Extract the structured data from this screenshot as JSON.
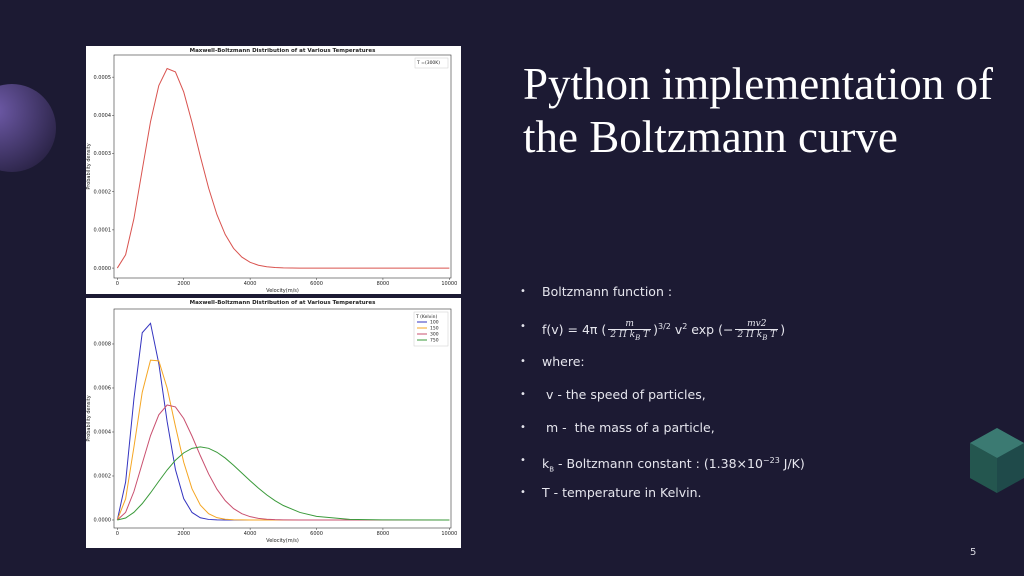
{
  "slide": {
    "title": "Python implementation of the Boltzmann curve",
    "bullet_mark": "•",
    "bullets": [
      "Boltzmann function :",
      "where:",
      " v - the speed of particles,",
      " m -  the mass of a particle,",
      "T - temperature in Kelvin."
    ],
    "formula": {
      "lead": "f(v) = 4π (",
      "num1": "m",
      "den": "2 Π k",
      "den_sub": "B",
      "den_tail": " T",
      "close": ")",
      "power": "3/2",
      "mid": "  v",
      "mid_sup": "2",
      "exp": " exp (−",
      "num2": "mv2",
      "end": ")"
    },
    "kb": {
      "k": "k",
      "sub": "B",
      "text": " - Boltzmann constant : (1.38×10",
      "sup": "−23",
      "tail": " J/K)"
    },
    "page_number": "5"
  },
  "chart_data": [
    {
      "type": "line",
      "title": "Maxwell-Boltzmann Distribution of  at Various Temperatures",
      "x_label": "Velocity(m/s)",
      "y_label": "Probability density",
      "x": [
        0,
        250,
        500,
        750,
        1000,
        1250,
        1500,
        1750,
        2000,
        2250,
        2500,
        2750,
        3000,
        3250,
        3500,
        3750,
        4000,
        4250,
        4500,
        4750,
        5000,
        5500,
        6000,
        7000,
        8000,
        10000
      ],
      "series": [
        {
          "name": "T =(300K)",
          "color": "#d9534f",
          "values": [
            0,
            3.488e-05,
            0.0001294,
            0.0002569,
            0.0003833,
            0.0004781,
            0.0005227,
            0.0005138,
            0.0004612,
            0.0003812,
            0.0002925,
            0.0002093,
            0.00014,
            8.79e-05,
            5.18e-05,
            2.88e-05,
            1.51e-05,
            7.5e-06,
            3.5e-06,
            1.5e-06,
            6e-07,
            0,
            0,
            0,
            0,
            0
          ]
        }
      ],
      "xlim": [
        -100,
        10050
      ],
      "ylim": [
        -2.6e-05,
        0.000558
      ],
      "xticks": [
        0,
        2000,
        4000,
        6000,
        8000,
        10000
      ],
      "yticks": [
        {
          "value": 0,
          "label": "0.0000"
        },
        {
          "value": 0.0001,
          "label": "0.0001"
        },
        {
          "value": 0.0002,
          "label": "0.0002"
        },
        {
          "value": 0.0003,
          "label": "0.0003"
        },
        {
          "value": 0.0004,
          "label": "0.0004"
        },
        {
          "value": 0.0005,
          "label": "0.0005"
        }
      ],
      "legend": "upper right"
    },
    {
      "type": "line",
      "title": "Maxwell-Boltzmann Distribution of  at Various Temperatures",
      "x_label": "Velocity(m/s)",
      "y_label": "Probability density",
      "legend_title": "T (Kelvin)",
      "x": [
        0,
        250,
        500,
        750,
        1000,
        1250,
        1500,
        1750,
        2000,
        2250,
        2500,
        2750,
        3000,
        3250,
        3500,
        3750,
        4000,
        4250,
        4500,
        4750,
        5000,
        5500,
        6000,
        7000,
        8000,
        10000
      ],
      "series": [
        {
          "name": "100",
          "color": "#3434c0",
          "values": [
            0,
            0.0001725,
            0.0005507,
            0.000851,
            0.000894,
            0.0007103,
            0.0004478,
            0.0002294,
            9.7e-05,
            3.42e-05,
            1.01e-05,
            2.5e-06,
            5e-07,
            0,
            0,
            0,
            0,
            0,
            0,
            0,
            0,
            0,
            0,
            0,
            0,
            0
          ]
        },
        {
          "name": "150",
          "color": "#f5a623",
          "values": [
            0,
            9.625e-05,
            0.0003313,
            0.0005803,
            0.0007266,
            0.0007231,
            0.0006,
            0.0004259,
            0.0002624,
            0.0001417,
            6.76e-05,
            2.85e-05,
            1.07e-05,
            3.6e-06,
            1.1e-06,
            3e-07,
            0,
            0,
            0,
            0,
            0,
            0,
            0,
            0,
            0,
            0
          ]
        },
        {
          "name": "300",
          "color": "#c9506f",
          "values": [
            0,
            3.488e-05,
            0.0001294,
            0.0002569,
            0.0003833,
            0.0004781,
            0.0005227,
            0.0005138,
            0.0004612,
            0.0003812,
            0.0002925,
            0.0002093,
            0.00014,
            8.79e-05,
            5.18e-05,
            2.88e-05,
            1.51e-05,
            7.5e-06,
            3.5e-06,
            1.5e-06,
            6e-07,
            0,
            0,
            0,
            0,
            0
          ]
        },
        {
          "name": "750",
          "color": "#3a9a3a",
          "values": [
            0,
            8.96e-06,
            3.477e-05,
            7.442e-05,
            0.0001233,
            0.0001761,
            0.0002272,
            0.0002714,
            0.0003051,
            0.0003256,
            0.0003324,
            0.0003258,
            0.0003079,
            0.0002814,
            0.000249,
            0.0002138,
            0.0001783,
            0.0001447,
            0.0001142,
            8.78e-05,
            6.58e-05,
            3.43e-05,
            1.63e-05,
            2.76e-06,
            3.3e-07,
            0
          ]
        }
      ],
      "xlim": [
        -100,
        10050
      ],
      "ylim": [
        -3.64e-05,
        0.000959
      ],
      "xticks": [
        0,
        2000,
        4000,
        6000,
        8000,
        10000
      ],
      "yticks": [
        {
          "value": 0,
          "label": "0.0000"
        },
        {
          "value": 0.0002,
          "label": "0.0002"
        },
        {
          "value": 0.0004,
          "label": "0.0004"
        },
        {
          "value": 0.0006,
          "label": "0.0006"
        },
        {
          "value": 0.0008,
          "label": "0.0008"
        }
      ],
      "legend": "upper right"
    }
  ]
}
